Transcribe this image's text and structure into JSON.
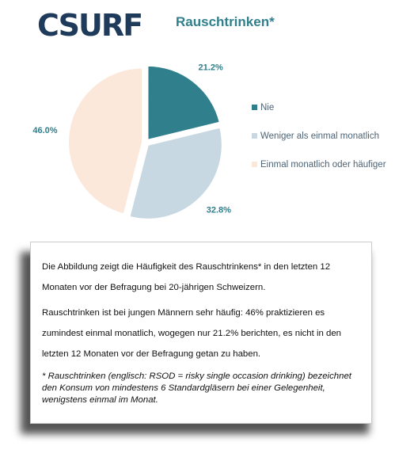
{
  "logo": "CSURF",
  "chart_data": {
    "type": "pie",
    "title": "Rauschtrinken*",
    "categories": [
      "Nie",
      "Weniger als einmal monatlich",
      "Einmal monatlich oder häufiger"
    ],
    "values": [
      21.2,
      32.8,
      46.0
    ],
    "value_labels": [
      "21.2%",
      "32.8%",
      "46.0%"
    ],
    "colors": [
      "#2f7f8c",
      "#c8d8e2",
      "#fce8da"
    ],
    "legend": "right"
  },
  "note": {
    "paragraphs": [
      "Die Abbildung zeigt die Häufigkeit des  Rauschtrinkens* in den letzten 12 Monaten vor der Befragung bei 20-jährigen Schweizern.",
      "Rauschtrinken ist bei jungen Männern sehr häufig: 46% praktizieren es zumindest einmal monatlich, wogegen nur 21.2% berichten, es nicht in den letzten 12 Monaten vor der Befragung getan zu haben."
    ],
    "footnote": " * Rauschtrinken (englisch: RSOD = risky single occasion drinking) bezeichnet den Konsum von mindestens 6 Standardgläsern bei einer Gelegenheit, wenigstens einmal im Monat."
  }
}
